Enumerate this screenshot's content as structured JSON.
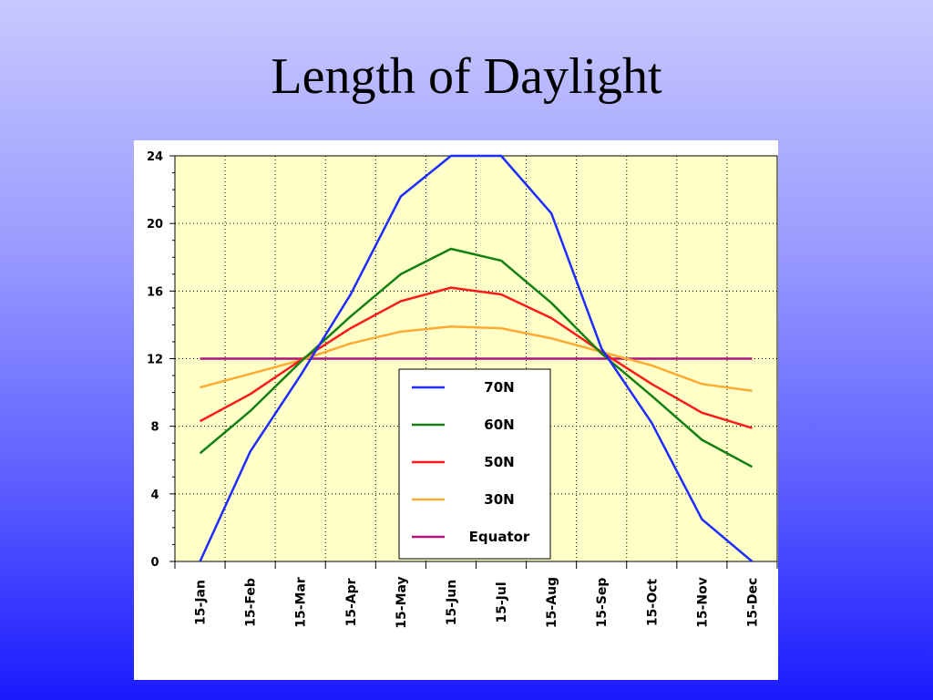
{
  "slide": {
    "title": "Length of Daylight"
  },
  "colors": {
    "plot_background": "#ffffc8",
    "series": {
      "70N": "#1e2cff",
      "60N": "#128012",
      "50N": "#ff1a1a",
      "30N": "#ffaa33",
      "Equator": "#b0147a"
    }
  },
  "chart_data": {
    "type": "line",
    "title": "",
    "xlabel": "",
    "ylabel": "",
    "categories": [
      "15-Jan",
      "15-Feb",
      "15-Mar",
      "15-Apr",
      "15-May",
      "15-Jun",
      "15-Jul",
      "15-Aug",
      "15-Sep",
      "15-Oct",
      "15-Nov",
      "15-Dec"
    ],
    "ylim": [
      0,
      24
    ],
    "yticks": [
      0,
      4,
      8,
      12,
      16,
      20,
      24
    ],
    "grid": true,
    "legend_position": "center",
    "series": [
      {
        "name": "70N",
        "values": [
          0,
          6.5,
          11,
          15.8,
          21.6,
          24,
          24,
          20.6,
          12.6,
          8.2,
          2.5,
          0
        ]
      },
      {
        "name": "60N",
        "values": [
          6.4,
          8.9,
          11.8,
          14.5,
          17,
          18.5,
          17.8,
          15.3,
          12.3,
          9.8,
          7.2,
          5.6
        ]
      },
      {
        "name": "50N",
        "values": [
          8.3,
          9.9,
          11.9,
          13.8,
          15.4,
          16.2,
          15.8,
          14.4,
          12.4,
          10.5,
          8.8,
          7.9
        ]
      },
      {
        "name": "30N",
        "values": [
          10.3,
          11.1,
          11.9,
          12.9,
          13.6,
          13.9,
          13.8,
          13.2,
          12.4,
          11.6,
          10.5,
          10.1
        ]
      },
      {
        "name": "Equator",
        "values": [
          12,
          12,
          12,
          12,
          12,
          12,
          12,
          12,
          12,
          12,
          12,
          12
        ]
      }
    ]
  }
}
